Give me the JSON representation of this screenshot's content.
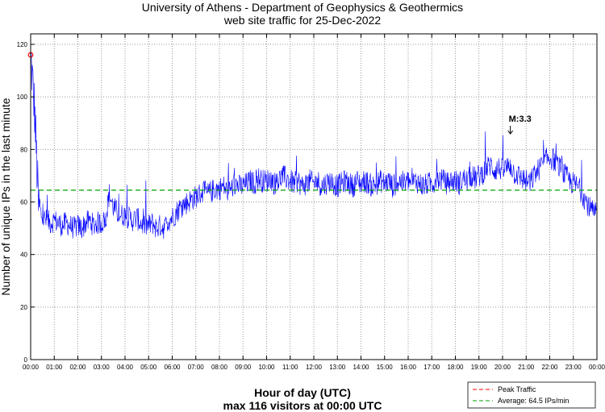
{
  "chart_data": {
    "type": "line",
    "title": [
      "University of Athens - Department of Geophysics & Geothermics",
      "web site traffic for 25-Dec-2022"
    ],
    "xlabel": "Hour of day (UTC)",
    "ylabel": "Number of unique IPs in the last minute",
    "subtitle": "max 116 visitors at 00:00 UTC",
    "xlim_hours": [
      0,
      24
    ],
    "ylim": [
      0,
      120
    ],
    "yticks": [
      "0",
      "20",
      "40",
      "60",
      "80",
      "100",
      "120"
    ],
    "xticks": [
      "00:00",
      "01:00",
      "02:00",
      "03:00",
      "04:00",
      "05:00",
      "06:00",
      "07:00",
      "08:00",
      "09:00",
      "10:00",
      "11:00",
      "12:00",
      "13:00",
      "14:00",
      "15:00",
      "16:00",
      "17:00",
      "18:00",
      "19:00",
      "20:00",
      "21:00",
      "22:00",
      "23:00",
      "00:00"
    ],
    "grid": true,
    "sample_interval_minutes": 10,
    "series": [
      {
        "name": "Unique IPs",
        "color": "#0000ff",
        "values": [
          116,
          95,
          58,
          54,
          53,
          52,
          53,
          52,
          51,
          52,
          51,
          50,
          51,
          50,
          52,
          53,
          51,
          52,
          52,
          53,
          63,
          58,
          56,
          55,
          55,
          54,
          53,
          54,
          52,
          51,
          51,
          52,
          50,
          51,
          50,
          53,
          54,
          56,
          58,
          59,
          60,
          61,
          62,
          63,
          64,
          63,
          64,
          65,
          65,
          66,
          64,
          65,
          67,
          66,
          66,
          67,
          68,
          67,
          69,
          68,
          68,
          69,
          67,
          68,
          70,
          69,
          68,
          67,
          68,
          66,
          67,
          68,
          67,
          68,
          66,
          67,
          68,
          67,
          66,
          67,
          68,
          67,
          66,
          68,
          67,
          68,
          67,
          66,
          67,
          68,
          67,
          68,
          66,
          67,
          68,
          67,
          68,
          67,
          68,
          67,
          66,
          67,
          67,
          68,
          69,
          68,
          67,
          68,
          68,
          67,
          69,
          68,
          70,
          69,
          70,
          71,
          73,
          74,
          72,
          73,
          72,
          73,
          74,
          71,
          70,
          69,
          68,
          67,
          70,
          72,
          74,
          76,
          77,
          76,
          74,
          72,
          70,
          68,
          67,
          66,
          64,
          61,
          58,
          56,
          55
        ]
      }
    ],
    "peak": {
      "hour": 0,
      "value": 116,
      "color": "#ff0000"
    },
    "average": {
      "value": 64.5,
      "color": "#00a000"
    },
    "annotation": {
      "label": "M:3.3",
      "hour": 20.33
    },
    "legend": {
      "placement": "bottom-right",
      "entries": [
        "Peak Traffic",
        "Average: 64.5 IPs/min"
      ]
    }
  }
}
